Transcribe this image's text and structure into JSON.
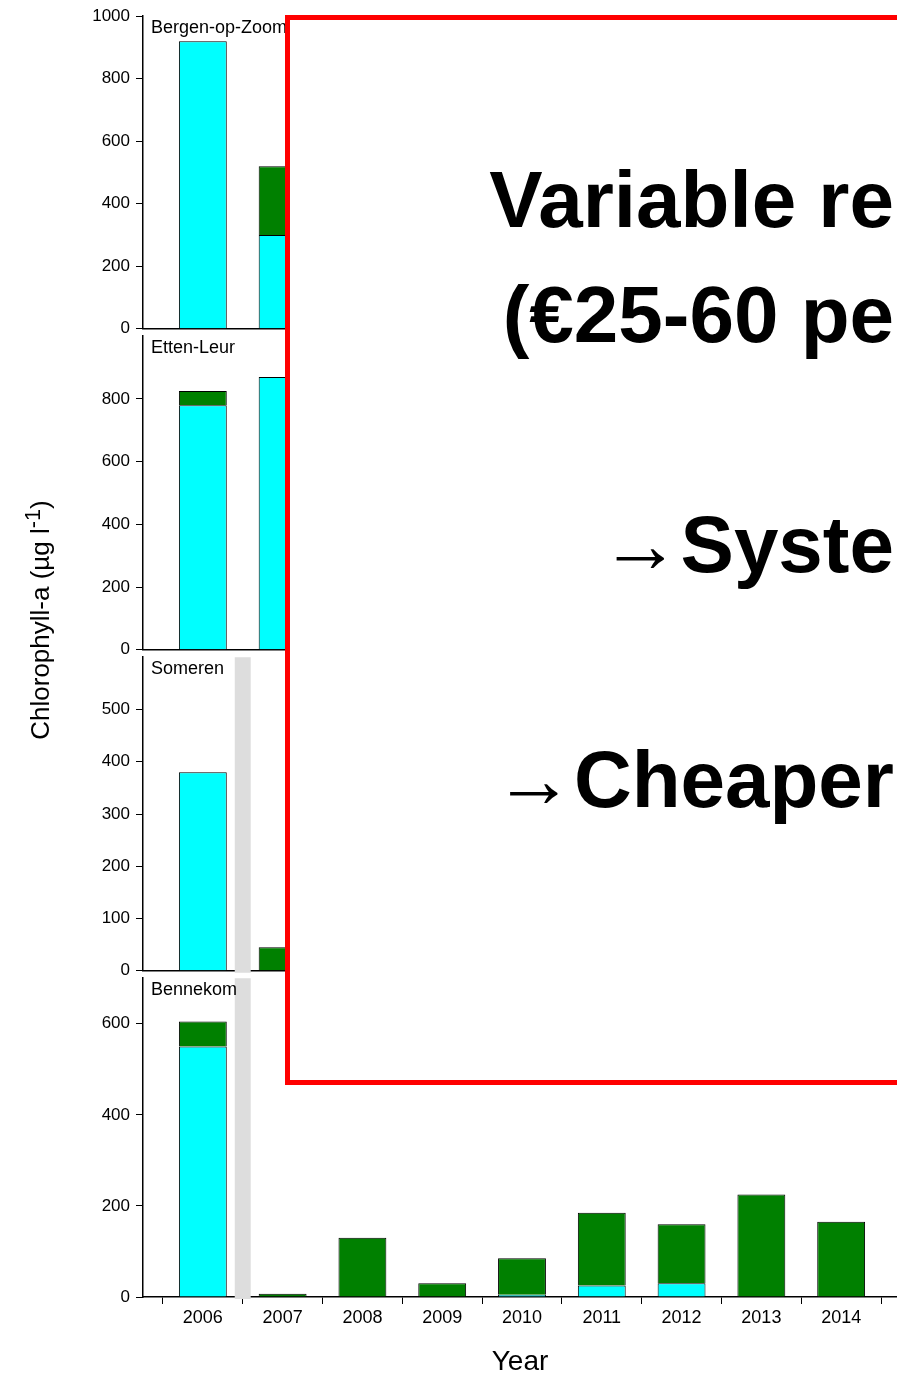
{
  "chart_data": [
    {
      "type": "bar",
      "title": "Bergen-op-Zoom",
      "x": [
        2006,
        2007
      ],
      "stacked": true,
      "series": [
        {
          "color": "#00ffff",
          "values": [
            920,
            300
          ]
        },
        {
          "color": "#008000",
          "values": [
            0,
            220
          ]
        }
      ],
      "xlim": [
        2005.25,
        2014.7
      ],
      "xticks": [
        2006,
        2007,
        2008,
        2009,
        2010,
        2011,
        2012,
        2013,
        2014
      ],
      "ylim": [
        0,
        1000
      ],
      "yticks": [
        0,
        200,
        400,
        600,
        800,
        1000
      ],
      "tick_labels": "y",
      "annotations": [
        "Variable re",
        "(€25-60 pe",
        "→Syste",
        "→Cheaper"
      ]
    },
    {
      "type": "bar",
      "title": "Etten-Leur",
      "x": [
        2006,
        2007
      ],
      "stacked": true,
      "ylabel": "Chlorophyll-a (µg l$^{-1}$)",
      "series": [
        {
          "color": "#00ffff",
          "values": [
            780,
            870
          ]
        },
        {
          "color": "#008000",
          "values": [
            45,
            0
          ]
        }
      ],
      "xlim": [
        2005.25,
        2014.7
      ],
      "xticks": [
        2006,
        2007,
        2008,
        2009,
        2010,
        2011,
        2012,
        2013,
        2014
      ],
      "ylim": [
        0,
        1000
      ],
      "yticks": [
        0,
        200,
        400,
        600,
        800
      ],
      "tick_labels": "y"
    },
    {
      "type": "bar",
      "title": "Someren",
      "x": [
        2006,
        2007
      ],
      "stacked": true,
      "series": [
        {
          "color": "#00ffff",
          "values": [
            380,
            0
          ]
        },
        {
          "color": "#008000",
          "values": [
            0,
            45
          ]
        }
      ],
      "xlim": [
        2005.25,
        2014.7
      ],
      "xticks": [
        2006,
        2007,
        2008,
        2009,
        2010,
        2011,
        2012,
        2013,
        2014
      ],
      "ylim": [
        0,
        600
      ],
      "yticks": [
        0,
        100,
        200,
        300,
        400,
        500
      ],
      "tick_labels": "y",
      "bands": [
        {
          "axis": "x",
          "from": 2006.4,
          "to": 2006.6,
          "color": "#dddddd"
        }
      ]
    },
    {
      "type": "bar",
      "title": "Bennekom",
      "x": [
        2006,
        2007,
        2008,
        2009,
        2010,
        2011,
        2012,
        2013,
        2014
      ],
      "stacked": true,
      "xlabel": "Year",
      "series": [
        {
          "color": "#00ffff",
          "values": [
            550,
            0,
            0,
            0,
            5,
            25,
            30,
            0,
            0
          ]
        },
        {
          "color": "#008000",
          "values": [
            55,
            7,
            130,
            30,
            80,
            160,
            130,
            225,
            165
          ]
        }
      ],
      "xlim": [
        2005.25,
        2014.7
      ],
      "xticks": [
        2006,
        2007,
        2008,
        2009,
        2010,
        2011,
        2012,
        2013,
        2014
      ],
      "ylim": [
        0,
        700
      ],
      "yticks": [
        0,
        200,
        400,
        600
      ],
      "bands": [
        {
          "axis": "x",
          "from": 2006.4,
          "to": 2006.6,
          "color": "#dddddd"
        }
      ]
    }
  ]
}
